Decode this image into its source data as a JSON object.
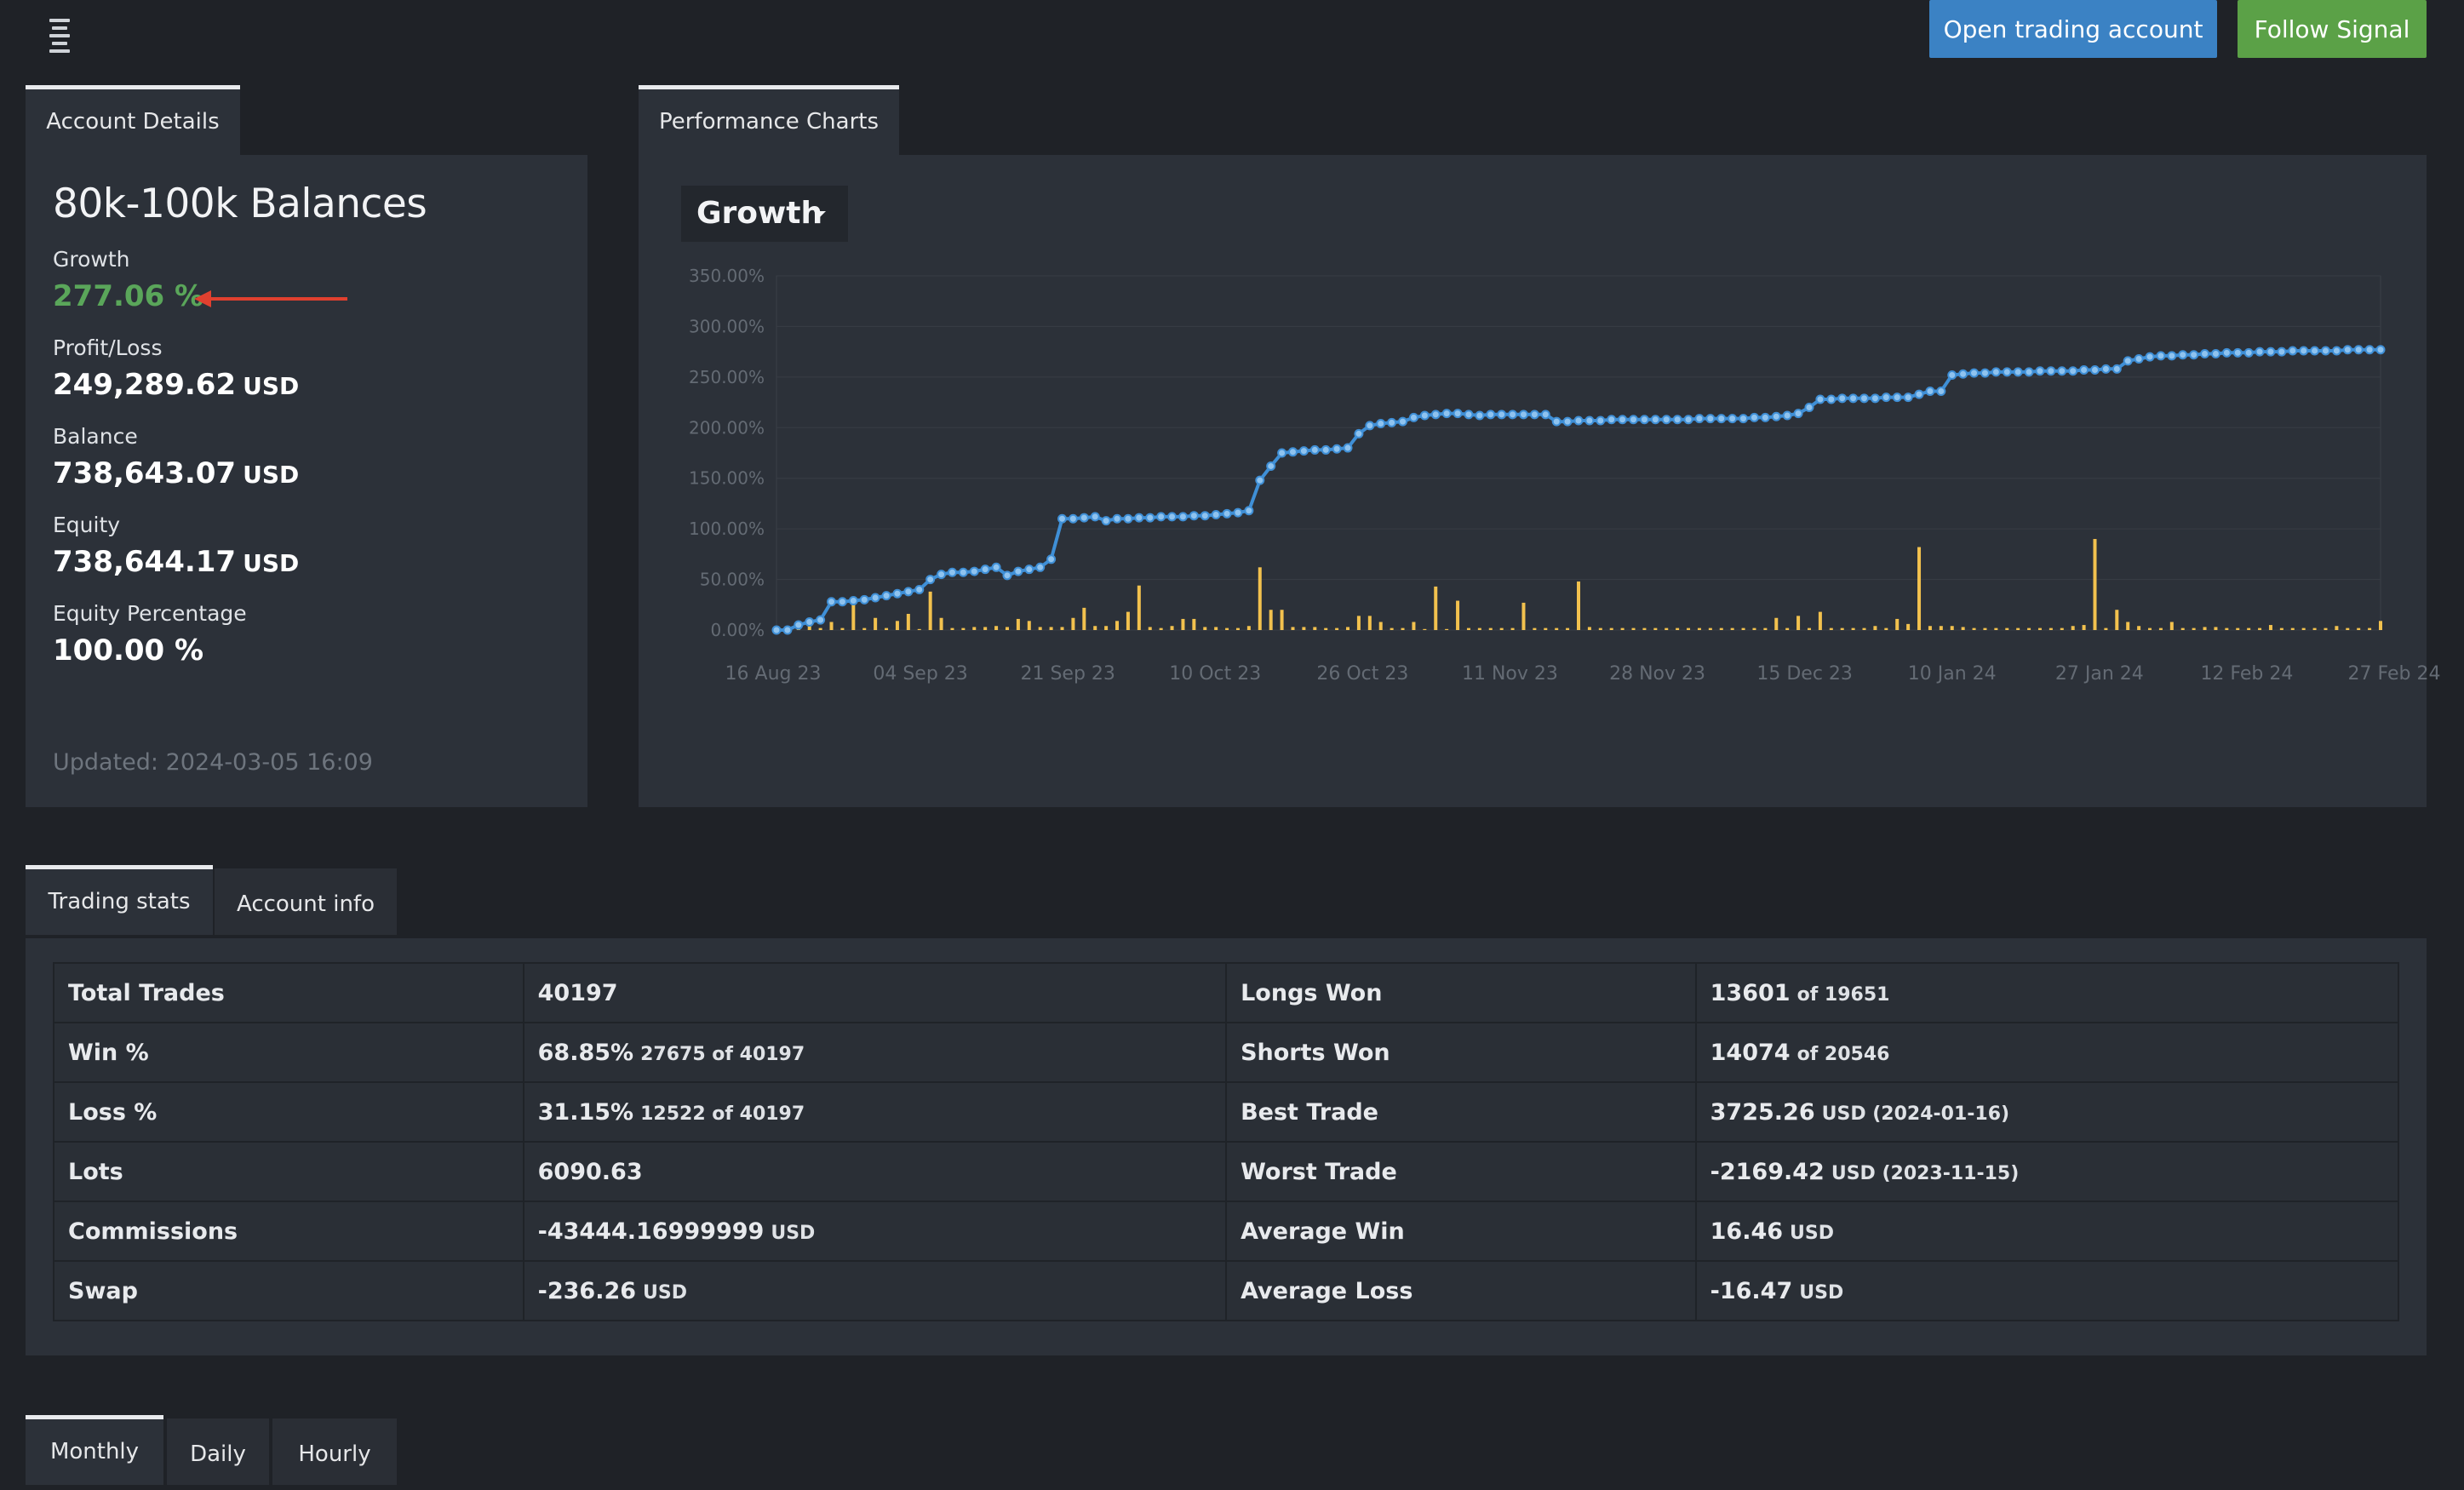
{
  "header": {
    "open_account_label": "Open trading account",
    "follow_signal_label": "Follow Signal"
  },
  "account_details": {
    "tab_label": "Account Details",
    "title": "80k-100k Balances",
    "growth_label": "Growth",
    "growth_value": "277.06 %",
    "profit_label": "Profit/Loss",
    "profit_value": "249,289.62",
    "balance_label": "Balance",
    "balance_value": "738,643.07",
    "equity_label": "Equity",
    "equity_value": "738,644.17",
    "equity_pct_label": "Equity Percentage",
    "equity_pct_value": "100.00 %",
    "currency": "USD",
    "updated": "Updated: 2024-03-05 16:09"
  },
  "performance": {
    "tab_label": "Performance Charts",
    "selector_label": "Growth"
  },
  "colors": {
    "accent_blue": "#3b82c4",
    "accent_green": "#5ba147",
    "growth_green": "#5aa65a",
    "line_blue": "#3f8fd6",
    "bar_yellow": "#f2c14e",
    "arrow_red": "#e0402f"
  },
  "chart_data": {
    "type": "line",
    "title": "",
    "xlabel": "",
    "ylabel": "",
    "y_ticks": [
      "350.00%",
      "300.00%",
      "250.00%",
      "200.00%",
      "150.00%",
      "100.00%",
      "50.00%",
      "0.00%"
    ],
    "ylim": [
      0,
      350
    ],
    "x_ticks": [
      "16 Aug 23",
      "04 Sep 23",
      "21 Sep 23",
      "10 Oct 23",
      "26 Oct 23",
      "11 Nov 23",
      "28 Nov 23",
      "15 Dec 23",
      "10 Jan 24",
      "27 Jan 24",
      "12 Feb 24",
      "27 Feb 24"
    ],
    "grid": true,
    "series": [
      {
        "type": "line",
        "y": [
          0,
          0,
          5,
          8,
          10,
          28,
          28,
          29,
          30,
          32,
          34,
          36,
          38,
          40,
          50,
          55,
          57,
          57,
          58,
          60,
          62,
          54,
          58,
          60,
          62,
          70,
          110,
          110,
          111,
          112,
          108,
          110,
          110,
          111,
          111,
          112,
          112,
          112,
          113,
          113,
          114,
          115,
          116,
          118,
          148,
          162,
          175,
          176,
          177,
          178,
          178,
          179,
          180,
          194,
          202,
          204,
          205,
          206,
          210,
          212,
          213,
          214,
          214,
          213,
          212,
          213,
          213,
          213,
          213,
          213,
          213,
          206,
          206,
          207,
          207,
          207,
          208,
          208,
          208,
          208,
          208,
          208,
          208,
          208,
          209,
          209,
          209,
          209,
          209,
          210,
          210,
          211,
          212,
          214,
          220,
          228,
          228,
          229,
          229,
          229,
          229,
          230,
          230,
          230,
          233,
          236,
          236,
          252,
          253,
          254,
          254,
          255,
          255,
          255,
          255,
          256,
          256,
          256,
          256,
          257,
          257,
          258,
          258,
          266,
          268,
          270,
          271,
          271,
          272,
          272,
          273,
          273,
          274,
          274,
          274,
          275,
          275,
          275,
          276,
          276,
          276,
          276,
          276,
          277,
          277,
          277,
          277
        ]
      },
      {
        "type": "bar",
        "y": [
          1,
          1,
          3,
          12,
          2,
          8,
          2,
          30,
          2,
          12,
          2,
          9,
          16,
          1,
          38,
          12,
          2,
          2,
          3,
          3,
          4,
          3,
          11,
          9,
          3,
          3,
          3,
          12,
          22,
          4,
          4,
          9,
          18,
          44,
          3,
          2,
          4,
          11,
          11,
          3,
          3,
          2,
          2,
          4,
          62,
          20,
          20,
          3,
          3,
          3,
          2,
          2,
          3,
          14,
          14,
          8,
          2,
          2,
          8,
          1,
          43,
          1,
          29,
          2,
          2,
          2,
          2,
          2,
          27,
          2,
          2,
          2,
          2,
          48,
          3,
          2,
          2,
          2,
          2,
          2,
          2,
          2,
          2,
          2,
          2,
          2,
          2,
          2,
          2,
          2,
          2,
          12,
          2,
          14,
          2,
          18,
          2,
          2,
          2,
          2,
          4,
          2,
          11,
          6,
          82,
          4,
          4,
          4,
          3,
          2,
          2,
          2,
          2,
          2,
          2,
          2,
          2,
          2,
          4,
          5,
          90,
          2,
          20,
          8,
          4,
          2,
          2,
          8,
          2,
          2,
          3,
          3,
          2,
          2,
          2,
          2,
          5,
          2,
          2,
          2,
          2,
          2,
          4,
          2,
          2,
          2,
          9
        ]
      }
    ]
  },
  "stats_tabs": [
    "Trading stats",
    "Account info"
  ],
  "stats": [
    {
      "k1": "Total Trades",
      "v1": "40197",
      "v1s": "",
      "k2": "Longs Won",
      "v2": "13601",
      "v2s": "of 19651"
    },
    {
      "k1": "Win %",
      "v1": "68.85%",
      "v1s": "27675 of 40197",
      "k2": "Shorts Won",
      "v2": "14074",
      "v2s": "of 20546"
    },
    {
      "k1": "Loss %",
      "v1": "31.15%",
      "v1s": "12522 of 40197",
      "k2": "Best Trade",
      "v2": "3725.26",
      "v2s": "USD (2024-01-16)"
    },
    {
      "k1": "Lots",
      "v1": "6090.63",
      "v1s": "",
      "k2": "Worst Trade",
      "v2": "-2169.42",
      "v2s": "USD (2023-11-15)"
    },
    {
      "k1": "Commissions",
      "v1": "-43444.16999999",
      "v1s": "USD",
      "k2": "Average Win",
      "v2": "16.46",
      "v2s": "USD"
    },
    {
      "k1": "Swap",
      "v1": "-236.26",
      "v1s": "USD",
      "k2": "Average Loss",
      "v2": "-16.47",
      "v2s": "USD"
    }
  ],
  "period_tabs": [
    "Monthly",
    "Daily",
    "Hourly"
  ]
}
